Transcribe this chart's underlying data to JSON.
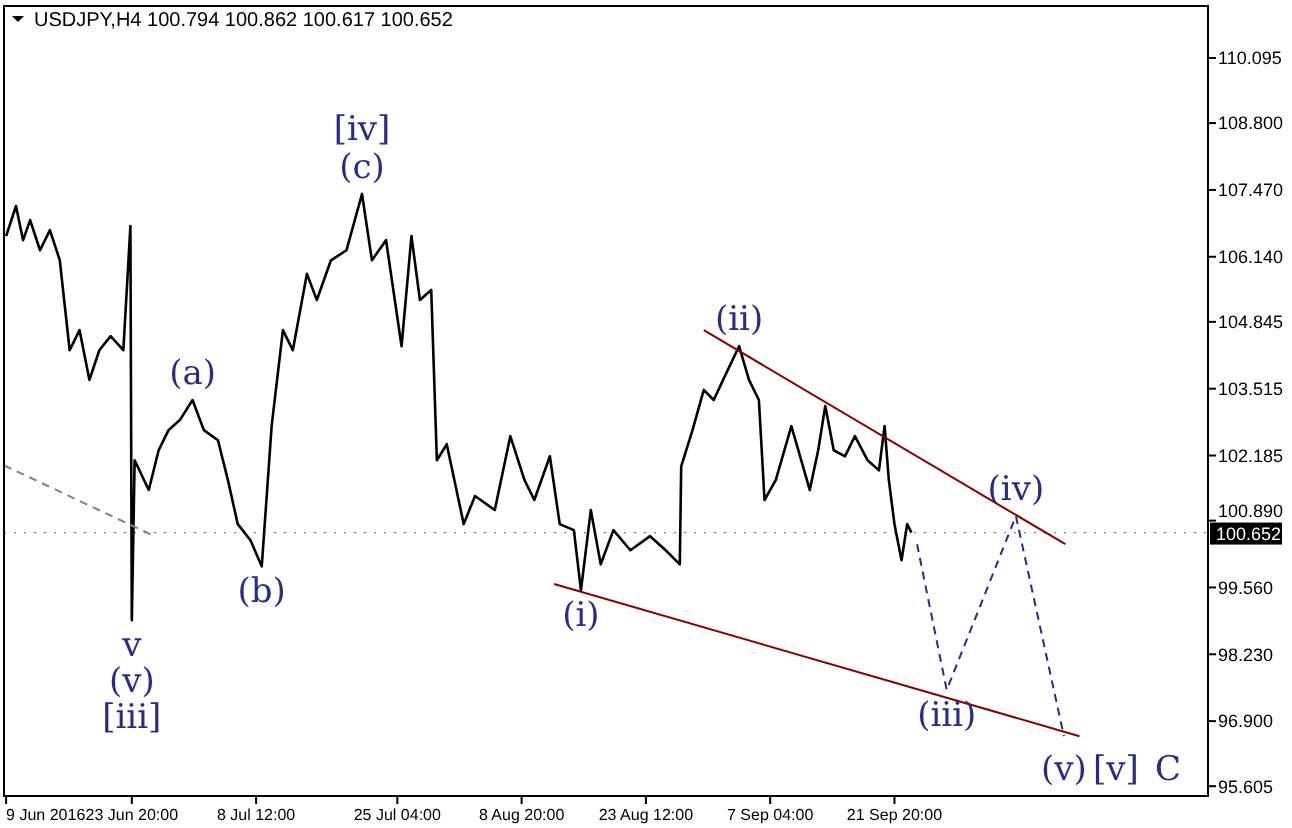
{
  "chart_data": {
    "type": "line",
    "title": "USDJPY,H4  100.794 100.862 100.617 100.652",
    "xlim": [
      "2016-06-08T18:00",
      "2016-10-28T20:00"
    ],
    "xticks": [
      {
        "value": "2016-06-09T00:00",
        "label": "9 Jun 2016"
      },
      {
        "value": "2016-06-23T20:00",
        "label": "23 Jun 20:00"
      },
      {
        "value": "2016-07-08T12:00",
        "label": "8 Jul 12:00"
      },
      {
        "value": "2016-07-25T04:00",
        "label": "25 Jul 04:00"
      },
      {
        "value": "2016-08-08T20:00",
        "label": "8 Aug 20:00"
      },
      {
        "value": "2016-08-23T12:00",
        "label": "23 Aug 12:00"
      },
      {
        "value": "2016-09-07T04:00",
        "label": "7 Sep 04:00"
      },
      {
        "value": "2016-09-21T20:00",
        "label": "21 Sep 20:00"
      }
    ],
    "ylim": [
      95.41,
      111.13
    ],
    "yticks": [
      {
        "value": 110.095,
        "label": "110.095"
      },
      {
        "value": 108.8,
        "label": "108.800"
      },
      {
        "value": 107.47,
        "label": "107.470"
      },
      {
        "value": 106.14,
        "label": "106.140"
      },
      {
        "value": 104.845,
        "label": "104.845"
      },
      {
        "value": 103.515,
        "label": "103.515"
      },
      {
        "value": 102.185,
        "label": "102.185"
      },
      {
        "value": 100.89,
        "label": "100.890"
      },
      {
        "value": 99.56,
        "label": "99.560"
      },
      {
        "value": 98.23,
        "label": "98.230"
      },
      {
        "value": 96.9,
        "label": "96.900"
      },
      {
        "value": 95.605,
        "label": "95.605"
      }
    ],
    "grid": false,
    "marker": "none",
    "series": [
      {
        "color": "#000000",
        "line_style": "solid",
        "x": [
          "2016-06-09T00:00",
          "2016-06-10T04:00",
          "2016-06-11T00:00",
          "2016-06-11T20:00",
          "2016-06-13T00:00",
          "2016-06-14T04:00",
          "2016-06-15T08:00",
          "2016-06-16T12:00",
          "2016-06-17T16:00",
          "2016-06-18T20:00",
          "2016-06-20T00:00",
          "2016-06-21T08:00",
          "2016-06-22T20:00",
          "2016-06-23T16:00",
          "2016-06-23T20:00",
          "2016-06-24T04:00",
          "2016-06-25T20:00",
          "2016-06-27T00:00",
          "2016-06-28T04:00",
          "2016-06-29T12:00",
          "2016-07-01T00:00",
          "2016-07-02T08:00",
          "2016-07-04T00:00",
          "2016-07-05T04:00",
          "2016-07-06T08:00",
          "2016-07-07T20:00",
          "2016-07-09T04:00",
          "2016-07-10T08:00",
          "2016-07-11T16:00",
          "2016-07-12T20:00",
          "2016-07-14T12:00",
          "2016-07-15T16:00",
          "2016-07-17T08:00",
          "2016-07-19T04:00",
          "2016-07-21T00:00",
          "2016-07-22T04:00",
          "2016-07-23T20:00",
          "2016-07-25T16:00",
          "2016-07-26T20:00",
          "2016-07-27T20:00",
          "2016-07-29T04:00",
          "2016-07-29T20:00",
          "2016-07-31T00:00",
          "2016-08-02T00:00",
          "2016-08-03T08:00",
          "2016-08-05T16:00",
          "2016-08-07T12:00",
          "2016-08-09T04:00",
          "2016-08-10T08:00",
          "2016-08-12T04:00",
          "2016-08-13T08:00",
          "2016-08-15T00:00",
          "2016-08-15T20:00",
          "2016-08-17T00:00",
          "2016-08-18T04:00",
          "2016-08-19T16:00",
          "2016-08-21T16:00",
          "2016-08-24T00:00",
          "2016-08-25T20:00",
          "2016-08-27T12:00",
          "2016-08-27T16:00",
          "2016-08-29T00:00",
          "2016-08-30T08:00",
          "2016-08-31T12:00",
          "2016-09-01T20:00",
          "2016-09-03T12:00",
          "2016-09-04T16:00",
          "2016-09-05T20:00",
          "2016-09-06T12:00",
          "2016-09-07T20:00",
          "2016-09-09T16:00",
          "2016-09-10T20:00",
          "2016-09-11T20:00",
          "2016-09-12T20:00",
          "2016-09-13T16:00",
          "2016-09-14T16:00",
          "2016-09-16T00:00",
          "2016-09-17T04:00",
          "2016-09-18T16:00",
          "2016-09-20T00:00",
          "2016-09-20T16:00",
          "2016-09-21T04:00",
          "2016-09-21T20:00",
          "2016-09-22T16:00",
          "2016-09-23T08:00",
          "2016-09-23T20:00"
        ],
        "values": [
          106.55,
          107.15,
          106.47,
          106.87,
          106.27,
          106.67,
          106.07,
          104.28,
          104.68,
          103.69,
          104.28,
          104.56,
          104.28,
          106.75,
          98.91,
          102.09,
          101.5,
          102.29,
          102.69,
          102.89,
          103.29,
          102.69,
          102.49,
          101.7,
          100.82,
          100.5,
          99.98,
          102.77,
          104.68,
          104.28,
          105.8,
          105.28,
          106.07,
          106.27,
          107.39,
          106.07,
          106.47,
          104.36,
          106.55,
          105.28,
          105.48,
          102.09,
          102.41,
          100.82,
          101.38,
          101.1,
          102.57,
          101.7,
          101.3,
          102.17,
          100.82,
          100.7,
          99.5,
          101.1,
          100.02,
          100.7,
          100.3,
          100.58,
          100.3,
          100.02,
          101.97,
          102.69,
          103.49,
          103.29,
          103.77,
          104.36,
          103.69,
          103.29,
          101.3,
          101.7,
          102.77,
          102.09,
          101.5,
          102.29,
          103.17,
          102.29,
          102.17,
          102.57,
          102.09,
          101.89,
          102.77,
          101.7,
          100.82,
          100.1,
          100.82,
          100.65
        ]
      },
      {
        "type": "line",
        "color": "#8b0000",
        "line_style": "solid",
        "x": [
          "2016-08-30T08:00",
          "2016-10-12T00:00"
        ],
        "values": [
          104.68,
          100.42
        ]
      },
      {
        "type": "line",
        "color": "#8b0000",
        "line_style": "solid",
        "x": [
          "2016-08-12T16:00",
          "2016-10-13T16:00"
        ],
        "values": [
          99.63,
          96.6
        ]
      },
      {
        "type": "line",
        "color": "#808080",
        "line_style": "dashed",
        "x": [
          "2016-06-08T18:00",
          "2016-06-26T12:00"
        ],
        "values": [
          101.99,
          100.58
        ]
      },
      {
        "type": "line",
        "color": "#2a2a8c",
        "line_style": "dashed",
        "x": [
          "2016-09-24T12:00",
          "2016-09-28T00:00",
          "2016-10-06T04:00",
          "2016-10-11T20:00"
        ],
        "values": [
          100.42,
          97.52,
          100.98,
          96.6
        ]
      }
    ],
    "ref_lines": [
      {
        "axis": "y",
        "value": 100.652,
        "label": "100.652",
        "color": "#000000"
      }
    ],
    "annotations": [
      {
        "text": "[iv]",
        "x": "2016-07-21T00:00",
        "y": 107.39
      },
      {
        "text": "(c)",
        "x": "2016-07-21T00:00",
        "y": 107.39
      },
      {
        "text": "(a)",
        "x": "2016-07-01T00:00",
        "y": 103.29
      },
      {
        "text": "(b)",
        "x": "2016-07-09T04:00",
        "y": 99.98
      },
      {
        "text": "v",
        "x": "2016-06-23T20:00",
        "y": 98.91
      },
      {
        "text": "(v)",
        "x": "2016-06-23T20:00",
        "y": 98.91
      },
      {
        "text": "[iii]",
        "x": "2016-06-23T20:00",
        "y": 98.91
      },
      {
        "text": "(i)",
        "x": "2016-08-15T20:00",
        "y": 99.5
      },
      {
        "text": "(ii)",
        "x": "2016-09-03T12:00",
        "y": 104.36
      },
      {
        "text": "(iii)",
        "x": "2016-09-28T00:00",
        "y": 97.52
      },
      {
        "text": "(iv)",
        "x": "2016-10-06T04:00",
        "y": 100.98
      },
      {
        "text": "(v)",
        "x": "2016-10-11T20:00",
        "y": 96.6
      },
      {
        "text": "[v]",
        "x": "2016-10-11T20:00",
        "y": 96.6
      },
      {
        "text": "C",
        "x": "2016-10-11T20:00",
        "y": 96.6
      }
    ]
  }
}
